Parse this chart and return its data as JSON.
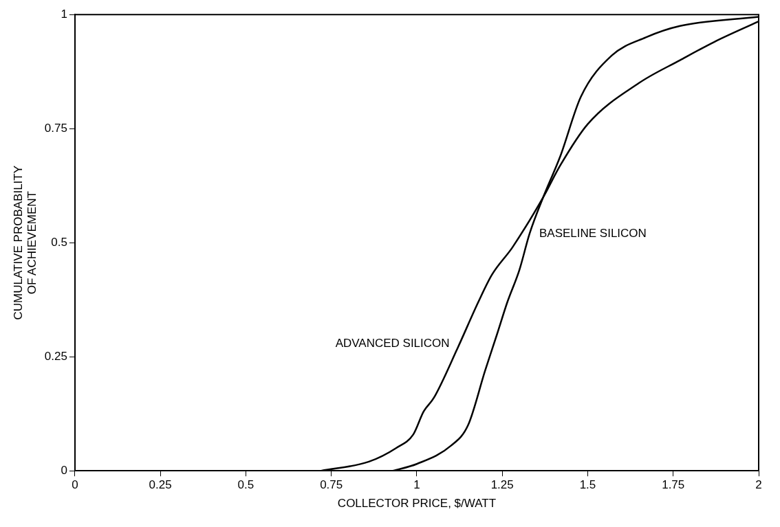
{
  "chart_data": {
    "type": "line",
    "xlabel": "COLLECTOR PRICE, $/WATT",
    "ylabel": "CUMULATIVE PROBABILITY OF ACHIEVEMENT",
    "xlim": [
      0,
      2
    ],
    "ylim": [
      0,
      1
    ],
    "xticks": [
      0,
      0.25,
      0.5,
      0.75,
      1,
      1.25,
      1.5,
      1.75,
      2
    ],
    "yticks": [
      0,
      0.25,
      0.5,
      0.75,
      1
    ],
    "grid": false,
    "legend": false,
    "marker": "none",
    "line_style": "solid",
    "series": [
      {
        "name": "ADVANCED SILICON",
        "color": "#000000",
        "x": [
          0.72,
          0.86,
          0.94,
          0.99,
          1.02,
          1.05,
          1.12,
          1.18,
          1.22,
          1.28,
          1.37,
          1.42,
          1.5,
          1.65,
          1.77,
          1.87,
          2
        ],
        "values": [
          0,
          0.02,
          0.05,
          0.08,
          0.13,
          0.16,
          0.27,
          0.37,
          0.43,
          0.49,
          0.6,
          0.67,
          0.76,
          0.85,
          0.9,
          0.94,
          0.985
        ]
      },
      {
        "name": "BASELINE SILICON",
        "color": "#000000",
        "x": [
          0.93,
          1.0,
          1.1,
          1.15,
          1.2,
          1.235,
          1.265,
          1.3,
          1.33,
          1.37,
          1.42,
          1.48,
          1.57,
          1.67,
          1.77,
          2
        ],
        "values": [
          0,
          0.015,
          0.055,
          0.1,
          0.22,
          0.3,
          0.37,
          0.44,
          0.52,
          0.6,
          0.69,
          0.82,
          0.91,
          0.95,
          0.975,
          0.995
        ]
      }
    ]
  }
}
